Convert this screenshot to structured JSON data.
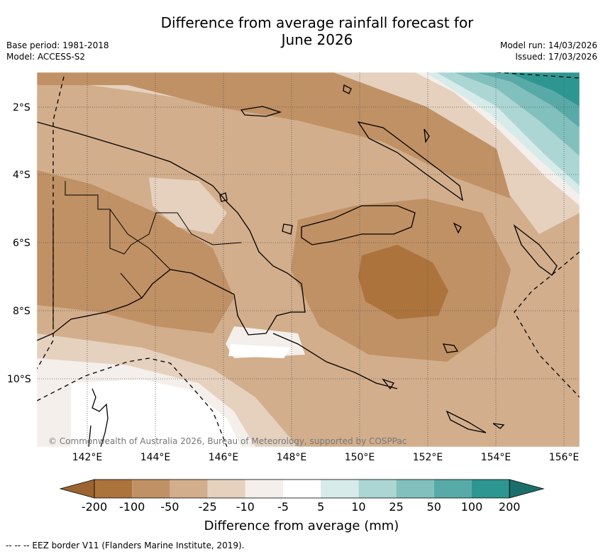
{
  "title": {
    "line1": "Difference from average rainfall forecast for",
    "line2": "June 2026"
  },
  "meta_left": {
    "base_period": "Base period: 1981-2018",
    "model": "Model: ACCESS-S2"
  },
  "meta_right": {
    "model_run": "Model run: 14/03/2026",
    "issued": "Issued: 17/03/2026"
  },
  "map": {
    "region": "Papua New Guinea",
    "lat_labels": [
      "2°S",
      "4°S",
      "6°S",
      "8°S",
      "10°S"
    ],
    "lon_labels": [
      "142°E",
      "144°E",
      "146°E",
      "148°E",
      "150°E",
      "152°E",
      "154°E",
      "156°E"
    ],
    "copyright": "© Commonwealth of Australia 2026, Bureau of Meteorology, supported by COSPPac"
  },
  "colorbar": {
    "label": "Difference from average (mm)",
    "ticks": [
      "-200",
      "-100",
      "-50",
      "-25",
      "-10",
      "-5",
      "5",
      "10",
      "25",
      "50",
      "100",
      "200"
    ],
    "colors": [
      "#9b6431",
      "#ad733d",
      "#c09165",
      "#d2ae8c",
      "#e5d1be",
      "#f4efea",
      "#ffffff",
      "#d6ebea",
      "#acd6d4",
      "#82c0be",
      "#58aaa8",
      "#2e9690",
      "#1b6f6b"
    ]
  },
  "footnote": "--  --  -- EEZ border V11 (Flanders Marine Institute, 2019)."
}
